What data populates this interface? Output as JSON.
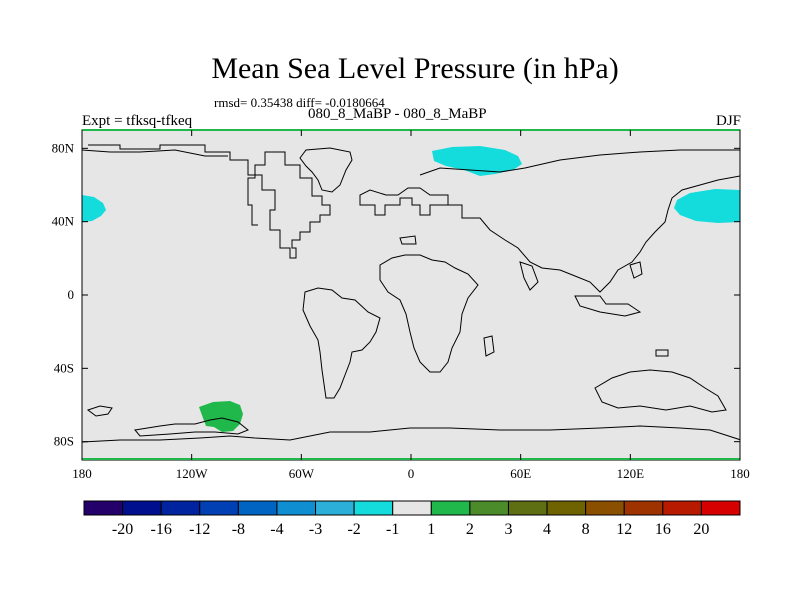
{
  "chart_data": {
    "type": "heatmap",
    "title": "Mean Sea Level Pressure (in hPa)",
    "subtitle": "rmsd= 0.35438 diff= -0.0180664",
    "experiment_name": "080_8_MaBP - 080_8_MaBP",
    "left_label": "Expt = tfksq-tfkeq",
    "right_label": "DJF",
    "x_axis": {
      "range": [
        -180,
        180
      ],
      "ticks": [
        -180,
        -120,
        -60,
        0,
        60,
        120,
        180
      ],
      "tick_labels": [
        "180",
        "120W",
        "60W",
        "0",
        "60E",
        "120E",
        "180"
      ]
    },
    "y_axis": {
      "range": [
        -90,
        90
      ],
      "ticks": [
        80,
        40,
        0,
        -40,
        -80
      ],
      "tick_labels": [
        "80N",
        "40N",
        "0",
        "40S",
        "80S"
      ]
    },
    "colorbar": {
      "colors": [
        "#24006a",
        "#000f8e",
        "#0024a0",
        "#0040b4",
        "#0064c3",
        "#0f8ed1",
        "#2cafd9",
        "#14dbdc",
        "#e6e6e6",
        "#21b84b",
        "#4b8b2a",
        "#5e6e13",
        "#6f6200",
        "#8b4f00",
        "#9e3300",
        "#b81a00",
        "#d60000"
      ],
      "labels": [
        "-20",
        "-16",
        "-12",
        "-8",
        "-4",
        "-3",
        "-2",
        "-1",
        "1",
        "2",
        "3",
        "4",
        "8",
        "12",
        "16",
        "20"
      ]
    },
    "anomaly_regions": [
      {
        "name": "arctic-siberia",
        "level": "-2 to -1",
        "lon": [
          10,
          60
        ],
        "lat": [
          67,
          83
        ]
      },
      {
        "name": "north-pacific",
        "level": "-2 to -1",
        "lon": [
          145,
          180
        ],
        "lat": [
          39,
          56
        ]
      },
      {
        "name": "north-pacific-west-edge",
        "level": "-2 to -1",
        "lon": [
          -180,
          -168
        ],
        "lat": [
          39,
          53
        ]
      },
      {
        "name": "antarctic-peninsula",
        "level": "1 to 2",
        "lon": [
          -115,
          -90
        ],
        "lat": [
          -76,
          -61
        ]
      }
    ],
    "background_range": "-1 to 1",
    "contour": "continental outlines"
  }
}
